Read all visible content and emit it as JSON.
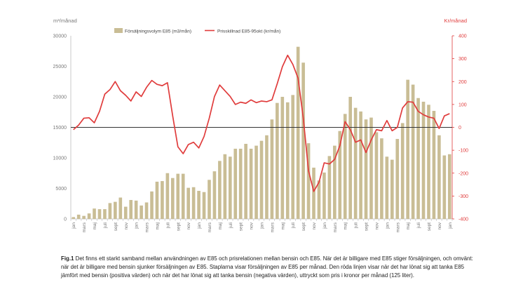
{
  "chart_data": {
    "type": "bar+line",
    "left_unit": "m³/månad",
    "right_unit": "Kr/månad",
    "left_ticks": [
      "0",
      "5000",
      "10000",
      "15000",
      "20000",
      "25000",
      "30000"
    ],
    "right_ticks": [
      "-400",
      "-300",
      "-200",
      "-100",
      "0",
      "100",
      "200",
      "300",
      "400"
    ],
    "ylim_left": [
      0,
      30000
    ],
    "ylim_right": [
      -400,
      400
    ],
    "series": [
      {
        "name": "Försäljningsvolym E85 (m3/mån)",
        "axis": "left",
        "kind": "bar",
        "color": "#c9bd95",
        "values": [
          300,
          700,
          500,
          900,
          1700,
          1600,
          1600,
          2600,
          2800,
          3500,
          2000,
          3100,
          3000,
          2200,
          2700,
          4500,
          6100,
          6200,
          7500,
          6700,
          7400,
          7400,
          5100,
          5200,
          4600,
          4400,
          6400,
          7800,
          9500,
          10600,
          10200,
          11500,
          11500,
          12300,
          11500,
          12000,
          12800,
          13700,
          16300,
          19000,
          20000,
          19100,
          20300,
          28200,
          25600,
          12400,
          8400,
          6300,
          7600,
          10300,
          12000,
          14400,
          17200,
          20000,
          18200,
          17600,
          16300,
          16600,
          14200,
          13200,
          10200,
          9700,
          13100,
          15700,
          22800,
          22000,
          19800,
          19200,
          18700,
          17700,
          13700,
          10400,
          10600
        ]
      },
      {
        "name": "Prisskillnad E85-95okt (kr/mån)",
        "axis": "right",
        "kind": "line",
        "color": "#e03c3c",
        "values": [
          -10,
          10,
          40,
          42,
          20,
          70,
          145,
          165,
          200,
          160,
          140,
          115,
          155,
          135,
          175,
          205,
          188,
          182,
          195,
          50,
          -85,
          -115,
          -75,
          -65,
          -90,
          -40,
          40,
          135,
          185,
          160,
          135,
          100,
          110,
          105,
          120,
          108,
          115,
          112,
          120,
          190,
          265,
          315,
          275,
          215,
          40,
          -190,
          -280,
          -240,
          -155,
          -160,
          -140,
          -80,
          25,
          -10,
          -65,
          -55,
          -110,
          -55,
          -10,
          -15,
          30,
          -15,
          0,
          85,
          112,
          110,
          70,
          55,
          45,
          40,
          -5,
          50,
          60
        ]
      }
    ],
    "month_labels": [
      "jan",
      "mars",
      "maj",
      "juli",
      "sept",
      "nov",
      "jan",
      "mars",
      "maj",
      "juli",
      "sept",
      "nov",
      "jan",
      "mars",
      "maj",
      "juli",
      "sept",
      "nov",
      "jan",
      "mars",
      "maj",
      "juli",
      "sept",
      "nov",
      "jan",
      "mars",
      "maj",
      "juli",
      "sept",
      "nov",
      "jan",
      "mars",
      "maj",
      "juli",
      "sept",
      "nov",
      "jan"
    ],
    "zero_line": "right axis 0",
    "grid": false,
    "legend_position": "top"
  },
  "caption": {
    "fig_label": "Fig.1",
    "text": " Det finns ett starkt samband mellan användningen av E85 och prisrelationen mellan bensin och E85. När det är billigare med E85 stiger försäljningen, och omvänt: när det är billigare med bensin sjunker försäljningen av E85. Staplarna visar försäljningen av E85 per månad. Den röda linjen visar när det har lönat sig att tanka E85 jämfört med bensin (positiva värden) och när det har lönat sig att tanka bensin (negativa värden), uttryckt som pris i kronor per månad (125 liter)."
  },
  "colors": {
    "bar": "#c9bd95",
    "line": "#e03c3c",
    "right_axis": "#e03c3c",
    "axis_text": "#7a7a7a"
  }
}
